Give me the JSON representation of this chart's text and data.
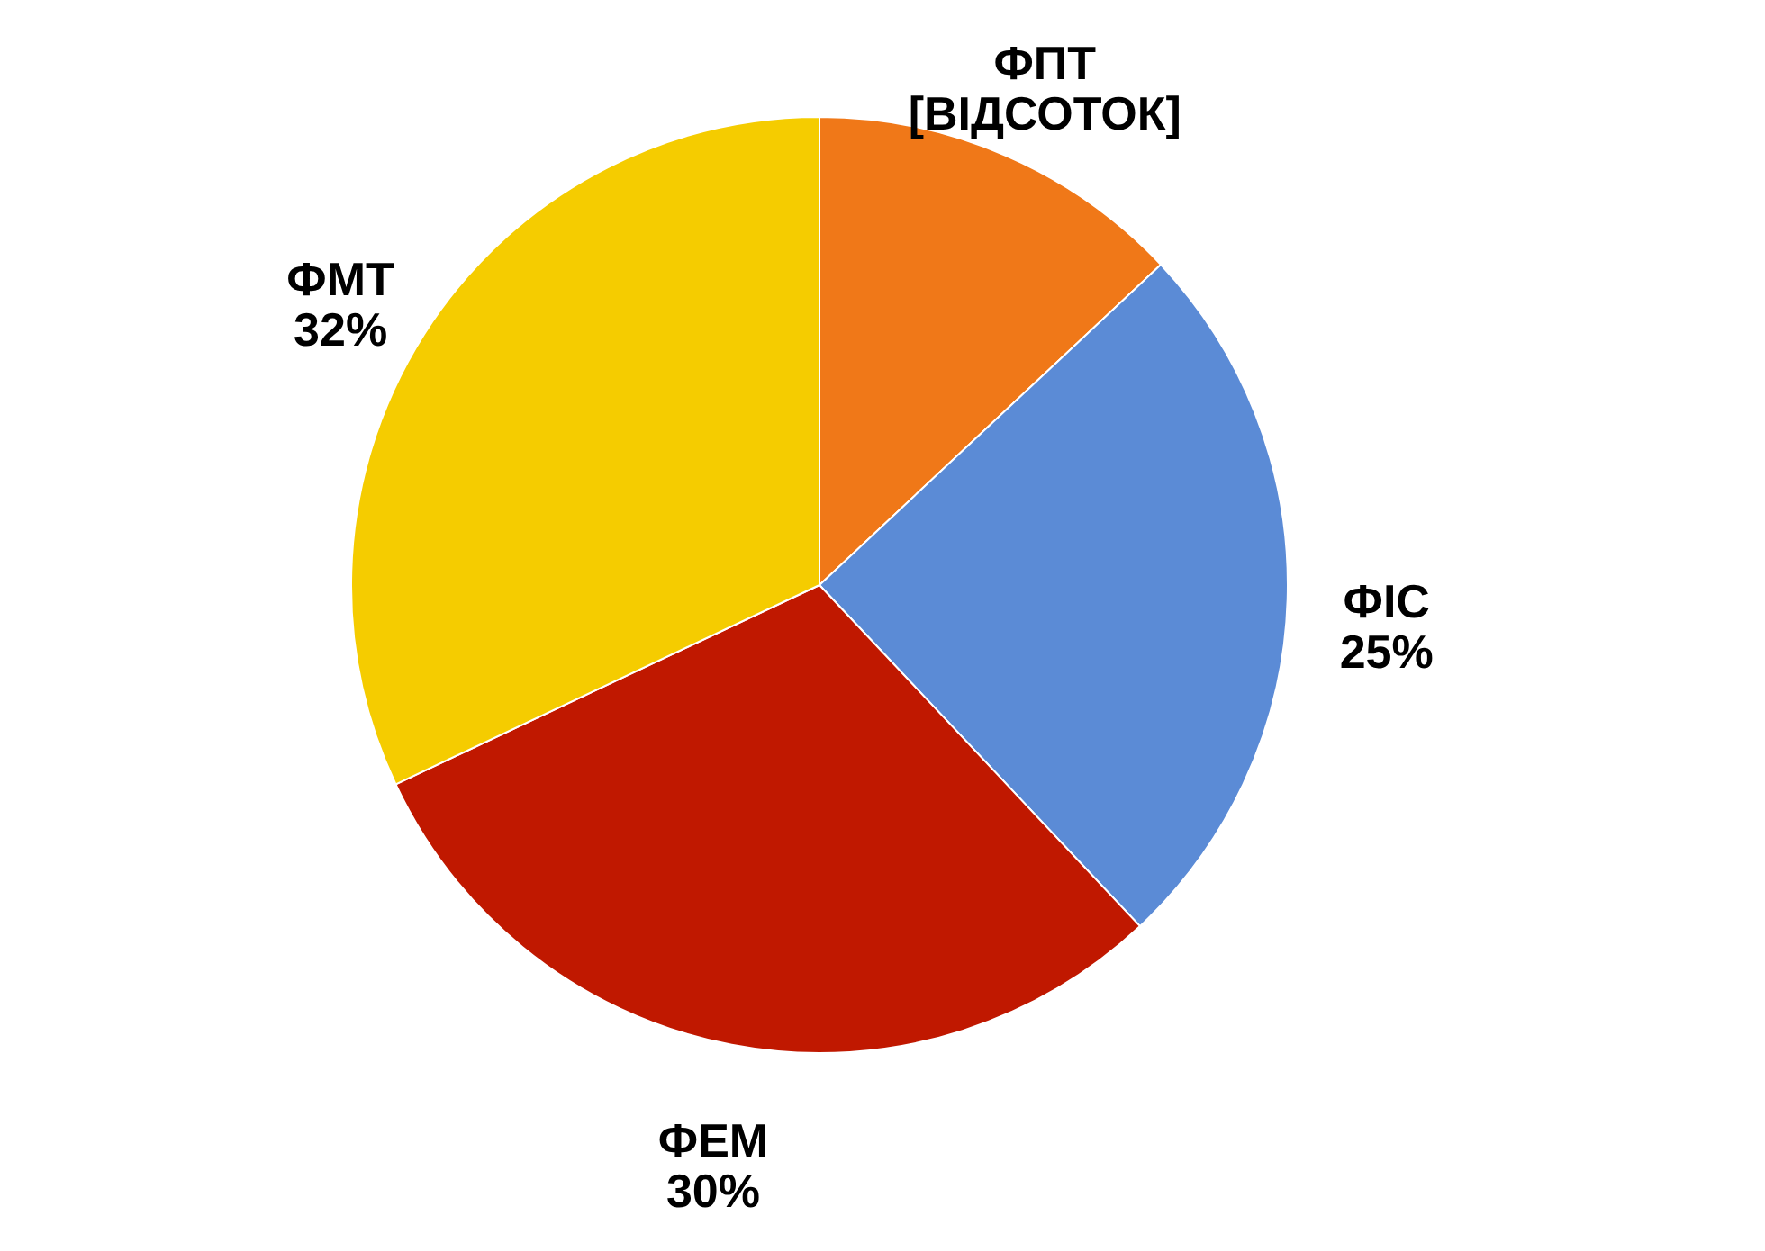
{
  "chart_data": {
    "type": "pie",
    "categories": [
      "ФПТ",
      "ФІС",
      "ФЕМ",
      "ФМТ"
    ],
    "values": [
      13,
      25,
      30,
      32
    ],
    "value_labels": [
      "[ВІДСОТОК]",
      "25%",
      "30%",
      "32%"
    ],
    "colors": [
      "#f07818",
      "#5b8bd6",
      "#c01800",
      "#f5cc00"
    ],
    "legend": false
  }
}
